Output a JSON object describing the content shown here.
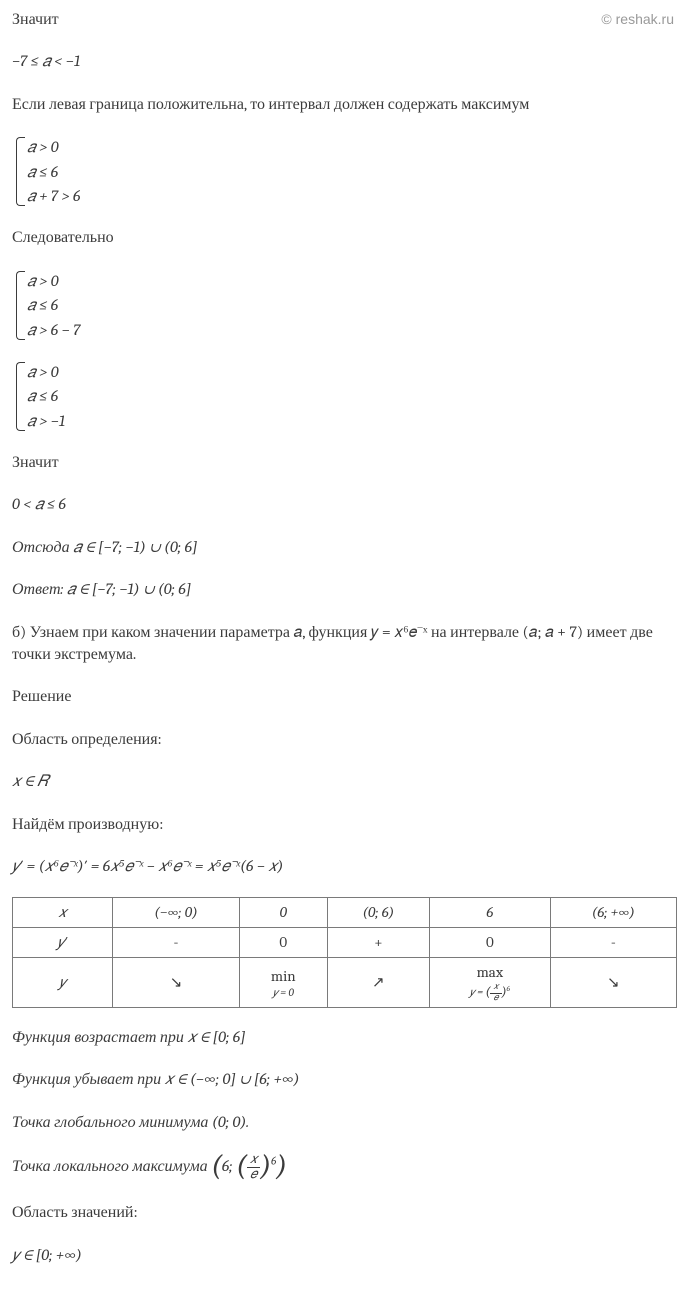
{
  "watermark": "© reshak.ru",
  "text": {
    "p1": "Значит",
    "p2": "−7 ≤ 𝑎 < −1",
    "p3": "Если левая граница положительна, то интервал должен содержать максимум",
    "p4": "Следовательно",
    "p5": "Значит",
    "p6": "0 < 𝑎 ≤ 6",
    "p7": "Отсюда 𝑎 ∈ [−7; −1) ∪ (0; 6]",
    "p8": "Ответ: 𝑎 ∈ [−7; −1) ∪ (0; 6]",
    "p9": "б) Узнаем при каком значении параметра 𝑎, функция 𝑦 = 𝑥⁶𝑒⁻ˣ  на интервале (𝑎; 𝑎 + 7) имеет две точки экстремума.",
    "p10": "Решение",
    "p11": "Область определения:",
    "p12": "𝑥 ∈ 𝑅",
    "p13": "Найдём производную:",
    "p14": "𝑦′ = (𝑥⁶𝑒⁻ˣ)′ = 6𝑥⁵𝑒⁻ˣ − 𝑥⁶𝑒⁻ˣ = 𝑥⁵𝑒⁻ˣ(6 − 𝑥)",
    "p15": "Функция возрастает при 𝑥 ∈ [0; 6]",
    "p16": "Функция убывает при 𝑥 ∈ (−∞; 0] ∪ [6; +∞)",
    "p17": "Точка глобального минимума (0; 0).",
    "p18_prefix": "Точка локального максимума ",
    "p18_six": "6; ",
    "p18_num": "𝑥",
    "p18_den": "𝑒",
    "p18_exp": "6",
    "p19": "Область значений:",
    "p20": "𝑦 ∈ [0; +∞)"
  },
  "system1": [
    "𝑎 > 0",
    "𝑎 ≤ 6",
    "𝑎 + 7 > 6"
  ],
  "system2": [
    "𝑎 > 0",
    "𝑎 ≤ 6",
    "𝑎 > 6 − 7"
  ],
  "system3": [
    "𝑎 > 0",
    "𝑎 ≤ 6",
    "𝑎 > −1"
  ],
  "table": {
    "headers": [
      "𝑥",
      "(−∞; 0)",
      "0",
      "(0; 6)",
      "6",
      "(6; +∞)"
    ],
    "row_yprime": [
      "𝑦′",
      "-",
      "0",
      "+",
      "0",
      "-"
    ],
    "row_y": {
      "label": "𝑦",
      "c1": "↘",
      "c2_main": "min",
      "c2_sub": "𝑦 = 0",
      "c3": "↗",
      "c4_main": "max",
      "c4_sub_prefix": "𝑦 = ",
      "c4_frac_num": "𝑥",
      "c4_frac_den": "𝑒",
      "c4_exp": "6",
      "c5": "↘"
    }
  },
  "colors": {
    "text": "#3b3b3b",
    "border": "#7a7a7a",
    "watermark": "#999999",
    "background": "#ffffff"
  }
}
